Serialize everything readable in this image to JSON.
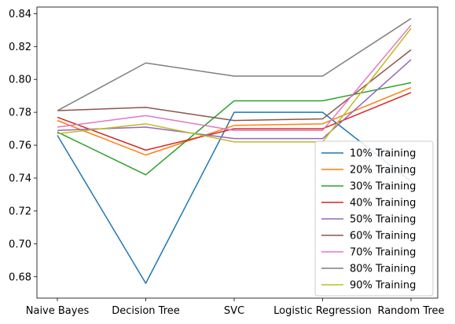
{
  "chart_data": {
    "type": "line",
    "title": "",
    "xlabel": "",
    "ylabel": "",
    "categories": [
      "Naive Bayes",
      "Decision Tree",
      "SVC",
      "Logistic Regression",
      "Random Tree"
    ],
    "ylim": [
      0.667,
      0.844
    ],
    "yticks": [
      0.68,
      0.7,
      0.72,
      0.74,
      0.76,
      0.78,
      0.8,
      0.82,
      0.84
    ],
    "ytick_labels": [
      "0.68",
      "0.70",
      "0.72",
      "0.74",
      "0.76",
      "0.78",
      "0.80",
      "0.82",
      "0.84"
    ],
    "grid": false,
    "legend_position": "bottom-right",
    "series": [
      {
        "name": "10% Training",
        "color": "#1f77b4",
        "values": [
          0.766,
          0.676,
          0.78,
          0.78,
          0.738
        ]
      },
      {
        "name": "20% Training",
        "color": "#ff7f0e",
        "values": [
          0.775,
          0.754,
          0.772,
          0.773,
          0.795
        ]
      },
      {
        "name": "30% Training",
        "color": "#2ca02c",
        "values": [
          0.768,
          0.742,
          0.787,
          0.787,
          0.798
        ]
      },
      {
        "name": "40% Training",
        "color": "#d62728",
        "values": [
          0.777,
          0.757,
          0.77,
          0.77,
          0.792
        ]
      },
      {
        "name": "50% Training",
        "color": "#9467bd",
        "values": [
          0.769,
          0.771,
          0.764,
          0.764,
          0.812
        ]
      },
      {
        "name": "60% Training",
        "color": "#8c564b",
        "values": [
          0.781,
          0.783,
          0.775,
          0.776,
          0.818
        ]
      },
      {
        "name": "70% Training",
        "color": "#e377c2",
        "values": [
          0.771,
          0.778,
          0.769,
          0.769,
          0.833
        ]
      },
      {
        "name": "80% Training",
        "color": "#7f7f7f",
        "values": [
          0.781,
          0.81,
          0.802,
          0.802,
          0.837
        ]
      },
      {
        "name": "90% Training",
        "color": "#bcbd22",
        "values": [
          0.767,
          0.773,
          0.762,
          0.762,
          0.831
        ]
      }
    ]
  }
}
